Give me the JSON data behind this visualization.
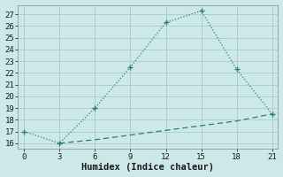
{
  "xlabel": "Humidex (Indice chaleur)",
  "x_main": [
    0,
    3,
    6,
    9,
    12,
    15,
    18,
    21
  ],
  "y_main": [
    17,
    16,
    19,
    22.5,
    26.3,
    27.3,
    22.3,
    18.5
  ],
  "x_dash": [
    3,
    6,
    9,
    12,
    15,
    18,
    21
  ],
  "y_dash": [
    16,
    16.3,
    16.7,
    17.1,
    17.5,
    17.9,
    18.5
  ],
  "line_color": "#2e7d6e",
  "bg_color": "#cde8e8",
  "grid_color": "#b0cece",
  "xlim": [
    -0.5,
    21.5
  ],
  "ylim": [
    15.5,
    27.8
  ],
  "xticks": [
    0,
    3,
    6,
    9,
    12,
    15,
    18,
    21
  ],
  "yticks": [
    16,
    17,
    18,
    19,
    20,
    21,
    22,
    23,
    24,
    25,
    26,
    27
  ],
  "fontsize_label": 7.5,
  "fontsize_tick": 6.5
}
